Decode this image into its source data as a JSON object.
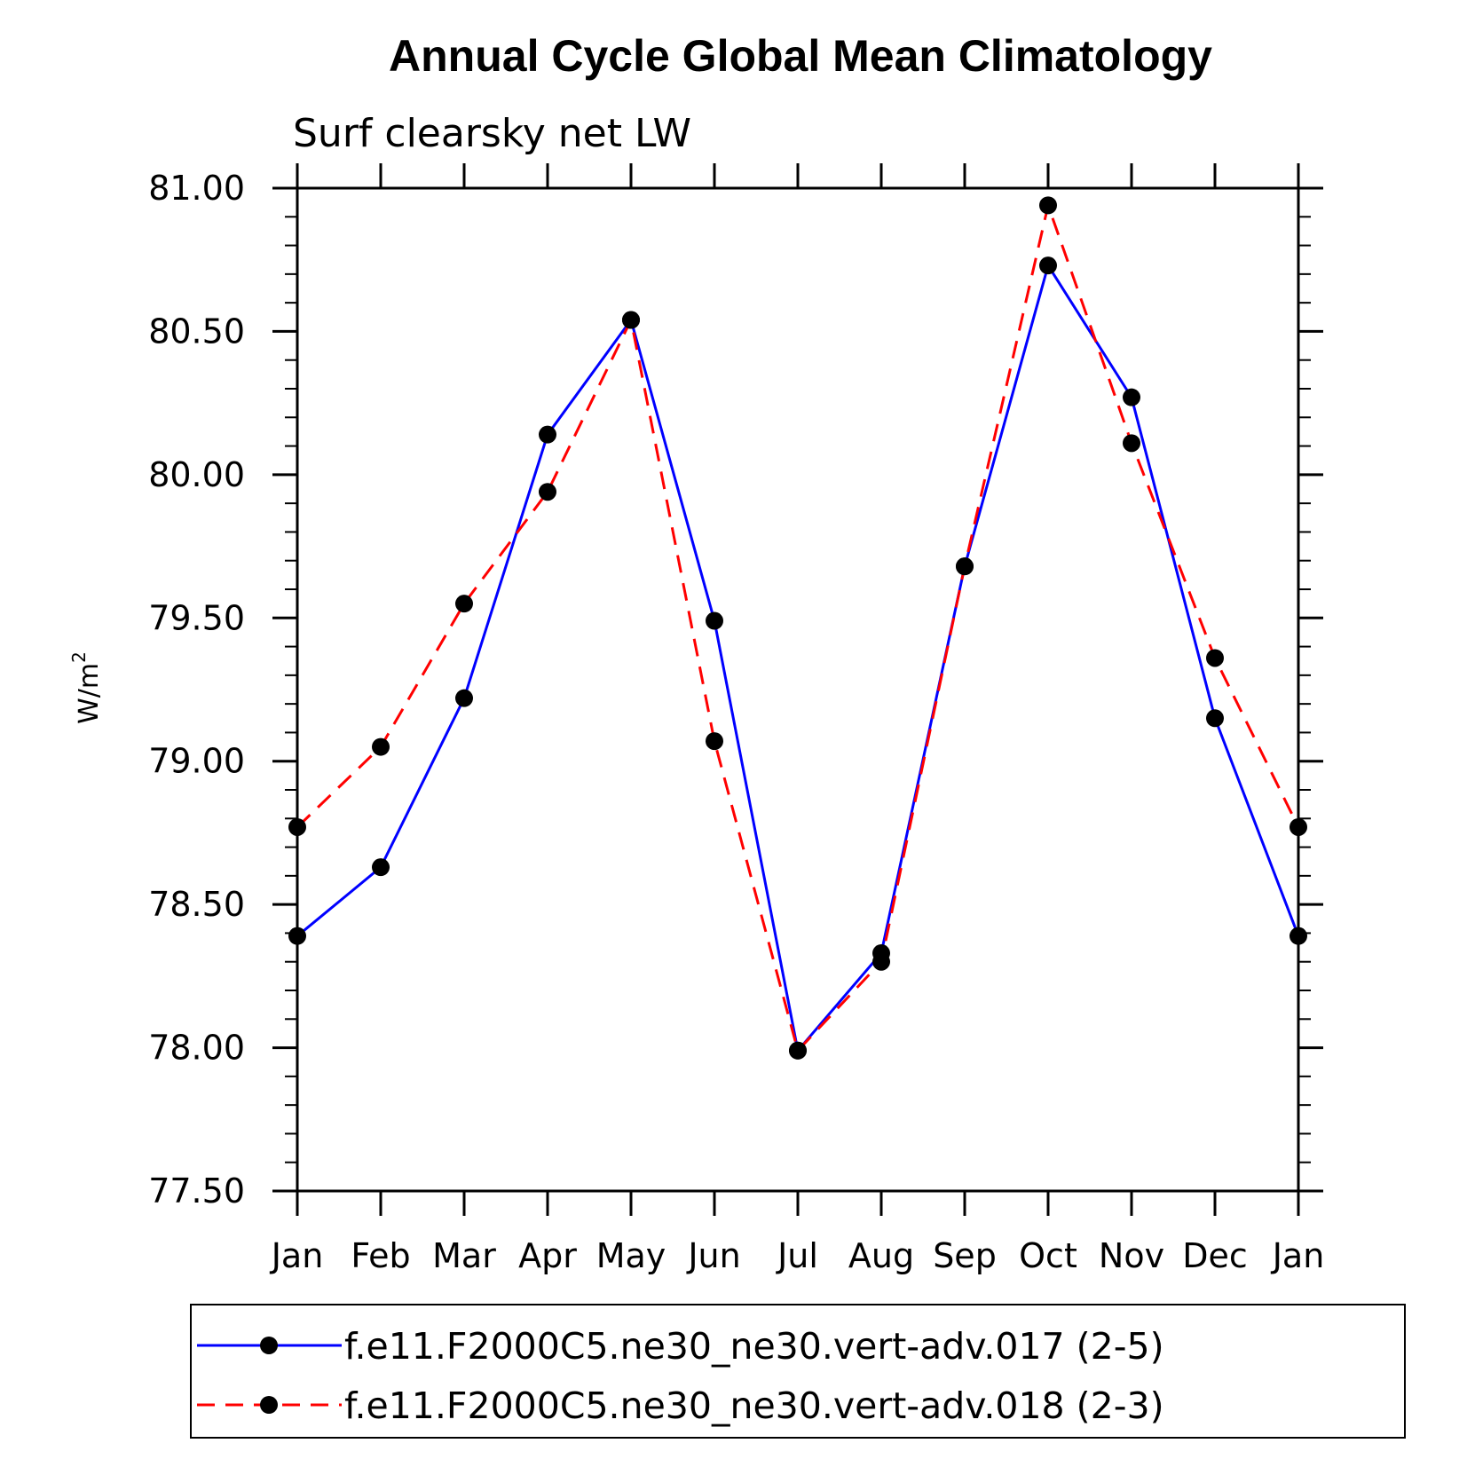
{
  "chart_data": {
    "type": "line",
    "title": "Annual Cycle Global Mean Climatology",
    "subtitle": "Surf clearsky net LW",
    "ylabel_base": "W/m",
    "ylabel_exp": "2",
    "xlabel": "",
    "categories": [
      "Jan",
      "Feb",
      "Mar",
      "Apr",
      "May",
      "Jun",
      "Jul",
      "Aug",
      "Sep",
      "Oct",
      "Nov",
      "Dec",
      "Jan"
    ],
    "ylim": [
      77.5,
      81.0
    ],
    "yticks": [
      "77.50",
      "78.00",
      "78.50",
      "79.00",
      "79.50",
      "80.00",
      "80.50",
      "81.00"
    ],
    "grid": false,
    "legend_position": "bottom",
    "series": [
      {
        "name": "f.e11.F2000C5.ne30_ne30.vert-adv.017 (2-5)",
        "color": "#0000ff",
        "dash": "solid",
        "values": [
          78.39,
          78.63,
          79.22,
          80.14,
          80.54,
          79.49,
          77.99,
          78.33,
          79.68,
          80.73,
          80.27,
          79.15,
          78.39
        ]
      },
      {
        "name": "f.e11.F2000C5.ne30_ne30.vert-adv.018 (2-3)",
        "color": "#ff0000",
        "dash": "dashed",
        "values": [
          78.77,
          79.05,
          79.55,
          79.94,
          80.54,
          79.07,
          77.99,
          78.3,
          79.68,
          80.94,
          80.11,
          79.36,
          78.77
        ]
      }
    ]
  }
}
